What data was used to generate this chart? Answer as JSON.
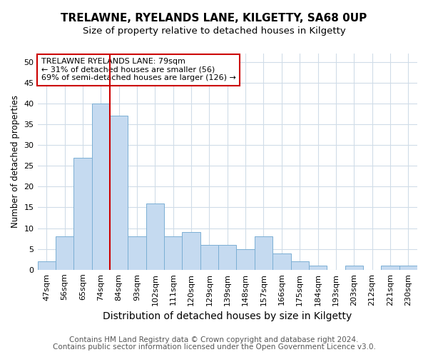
{
  "title": "TRELAWNE, RYELANDS LANE, KILGETTY, SA68 0UP",
  "subtitle": "Size of property relative to detached houses in Kilgetty",
  "xlabel": "Distribution of detached houses by size in Kilgetty",
  "ylabel": "Number of detached properties",
  "categories": [
    "47sqm",
    "56sqm",
    "65sqm",
    "74sqm",
    "84sqm",
    "93sqm",
    "102sqm",
    "111sqm",
    "120sqm",
    "129sqm",
    "139sqm",
    "148sqm",
    "157sqm",
    "166sqm",
    "175sqm",
    "184sqm",
    "193sqm",
    "203sqm",
    "212sqm",
    "221sqm",
    "230sqm"
  ],
  "values": [
    2,
    8,
    27,
    40,
    37,
    8,
    16,
    8,
    9,
    6,
    6,
    5,
    8,
    4,
    2,
    1,
    0,
    1,
    0,
    1,
    1
  ],
  "bar_color": "#c5daf0",
  "bar_edge_color": "#7bafd4",
  "vline_x": 3.5,
  "vline_color": "#cc0000",
  "annotation_text": "TRELAWNE RYELANDS LANE: 79sqm\n← 31% of detached houses are smaller (56)\n69% of semi-detached houses are larger (126) →",
  "annotation_box_color": "#ffffff",
  "annotation_box_edge": "#cc0000",
  "ylim": [
    0,
    52
  ],
  "yticks": [
    0,
    5,
    10,
    15,
    20,
    25,
    30,
    35,
    40,
    45,
    50
  ],
  "footer_line1": "Contains HM Land Registry data © Crown copyright and database right 2024.",
  "footer_line2": "Contains public sector information licensed under the Open Government Licence v3.0.",
  "bg_color": "#ffffff",
  "plot_bg_color": "#ffffff",
  "grid_color": "#d0dce8",
  "title_fontsize": 11,
  "subtitle_fontsize": 9.5,
  "xlabel_fontsize": 10,
  "ylabel_fontsize": 8.5,
  "tick_fontsize": 8,
  "footer_fontsize": 7.5,
  "annot_fontsize": 8
}
